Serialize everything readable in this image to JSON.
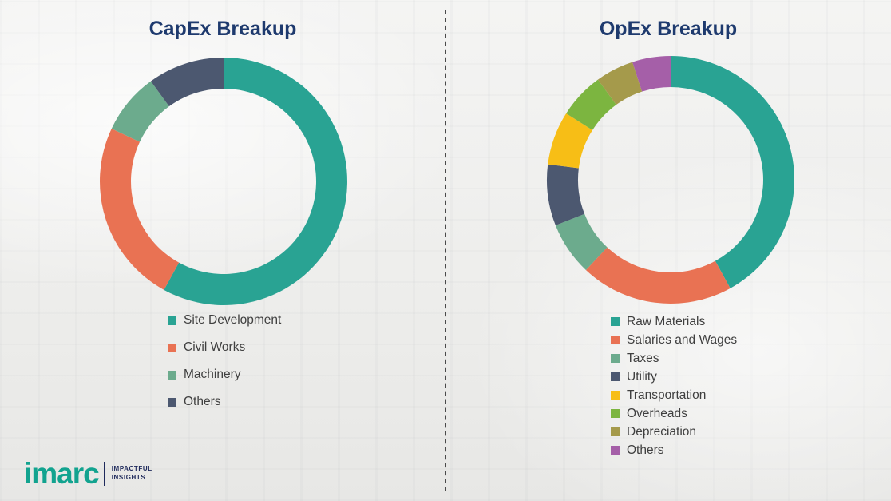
{
  "titles": {
    "left": "CapEx Breakup",
    "right": "OpEx Breakup"
  },
  "chart_data": [
    {
      "type": "pie",
      "subtype": "donut",
      "title": "CapEx Breakup",
      "legend_position": "bottom",
      "series": [
        {
          "label": "Site Development",
          "value": 58,
          "color": "#29A393"
        },
        {
          "label": "Civil Works",
          "value": 24,
          "color": "#E97253"
        },
        {
          "label": "Machinery",
          "value": 8,
          "color": "#6CAB8D"
        },
        {
          "label": "Others",
          "value": 10,
          "color": "#4C5870"
        }
      ]
    },
    {
      "type": "pie",
      "subtype": "donut",
      "title": "OpEx Breakup",
      "legend_position": "bottom",
      "series": [
        {
          "label": "Raw Materials",
          "value": 42,
          "color": "#29A393"
        },
        {
          "label": "Salaries and Wages",
          "value": 20,
          "color": "#E97253"
        },
        {
          "label": "Taxes",
          "value": 7,
          "color": "#6CAB8D"
        },
        {
          "label": "Utility",
          "value": 8,
          "color": "#4C5870"
        },
        {
          "label": "Transportation",
          "value": 7,
          "color": "#F7BE16"
        },
        {
          "label": "Overheads",
          "value": 6,
          "color": "#7CB540"
        },
        {
          "label": "Depreciation",
          "value": 5,
          "color": "#A59A4B"
        },
        {
          "label": "Others",
          "value": 5,
          "color": "#A55FA8"
        }
      ]
    }
  ],
  "logo": {
    "brand": "imarc",
    "tagline_line1": "IMPACTFUL",
    "tagline_line2": "INSIGHTS"
  },
  "colors": {
    "title_navy": "#1E3A6E",
    "legend_text": "#3F3F3F",
    "brand_teal": "#12A38F",
    "brand_navy": "#1F2A5C",
    "divider_gray": "#4A4A4A"
  }
}
